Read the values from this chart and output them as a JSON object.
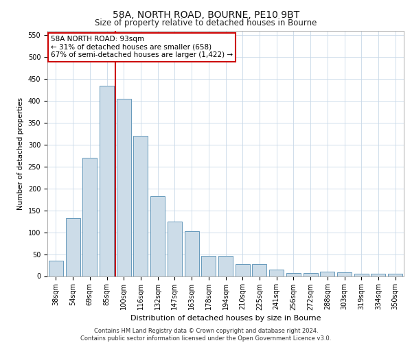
{
  "title1": "58A, NORTH ROAD, BOURNE, PE10 9BT",
  "title2": "Size of property relative to detached houses in Bourne",
  "xlabel": "Distribution of detached houses by size in Bourne",
  "ylabel": "Number of detached properties",
  "categories": [
    "38sqm",
    "54sqm",
    "69sqm",
    "85sqm",
    "100sqm",
    "116sqm",
    "132sqm",
    "147sqm",
    "163sqm",
    "178sqm",
    "194sqm",
    "210sqm",
    "225sqm",
    "241sqm",
    "256sqm",
    "272sqm",
    "288sqm",
    "303sqm",
    "319sqm",
    "334sqm",
    "350sqm"
  ],
  "values": [
    35,
    133,
    270,
    435,
    405,
    320,
    183,
    125,
    103,
    46,
    46,
    28,
    28,
    15,
    7,
    7,
    10,
    8,
    5,
    5,
    5
  ],
  "bar_color": "#ccdce8",
  "bar_edge_color": "#6699bb",
  "vline_x": 3.5,
  "vline_color": "#cc0000",
  "annotation_text": "58A NORTH ROAD: 93sqm\n← 31% of detached houses are smaller (658)\n67% of semi-detached houses are larger (1,422) →",
  "annotation_box_color": "#ffffff",
  "annotation_box_edge": "#cc0000",
  "ylim": [
    0,
    560
  ],
  "yticks": [
    0,
    50,
    100,
    150,
    200,
    250,
    300,
    350,
    400,
    450,
    500,
    550
  ],
  "footer1": "Contains HM Land Registry data © Crown copyright and database right 2024.",
  "footer2": "Contains public sector information licensed under the Open Government Licence v3.0.",
  "bg_color": "#ffffff",
  "grid_color": "#c8d8e8",
  "title1_fontsize": 10,
  "title2_fontsize": 8.5,
  "xlabel_fontsize": 8,
  "ylabel_fontsize": 7.5,
  "tick_fontsize": 7,
  "ann_fontsize": 7.5,
  "footer_fontsize": 6
}
